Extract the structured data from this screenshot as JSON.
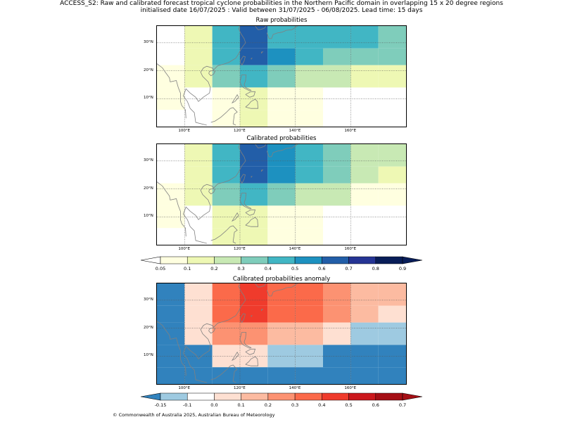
{
  "header": {
    "title_line1": "ACCESS_S2: Raw and calibrated forecast tropical cyclone probabilities in the Northern Pacific domain in overlapping 15 x 20 degree regions",
    "title_line2": "initialised date 16/07/2025 :  Valid between 31/07/2025 - 06/08/2025. Lead time: 15 days"
  },
  "panels": [
    {
      "title": "Raw probabilities"
    },
    {
      "title": "Calibrated probabilities"
    },
    {
      "title": "Calibrated probabilities anomaly"
    }
  ],
  "axes": {
    "lon_ticks": [
      "100°E",
      "120°E",
      "140°E",
      "160°E"
    ],
    "lat_ticks": [
      "30°N",
      "20°N",
      "10°N"
    ]
  },
  "colorbar_prob": {
    "labels": [
      "0.05",
      "0.1",
      "0.2",
      "0.3",
      "0.4",
      "0.5",
      "0.6",
      "0.7",
      "0.8",
      "0.9"
    ],
    "colors": [
      "#ffffe0",
      "#eef8b4",
      "#c8e9b4",
      "#7fcdbb",
      "#41b6c4",
      "#1d91c0",
      "#225ea8",
      "#253494",
      "#081d58"
    ]
  },
  "colorbar_anom": {
    "labels": [
      "-0.15",
      "-0.1",
      "0.0",
      "0.1",
      "0.2",
      "0.3",
      "0.4",
      "0.5",
      "0.6",
      "0.7"
    ],
    "colors": [
      "#9ecae1",
      "#ffffff",
      "#fee0d2",
      "#fcbba1",
      "#fc9272",
      "#fb6a4a",
      "#ef3b2c",
      "#cb181d",
      "#a50f15"
    ],
    "under_color": "#3182bd"
  },
  "chart_data": {
    "type": "heatmap",
    "grid": {
      "lon_min": 90,
      "lon_max": 180,
      "lat_min": 0,
      "lat_max": 36,
      "lon_step": 10,
      "lat_rows": [
        [
          28,
          36
        ],
        [
          22,
          28
        ],
        [
          14,
          22
        ],
        [
          6,
          14
        ],
        [
          0,
          6
        ]
      ]
    },
    "raw": [
      [
        null,
        0.15,
        0.45,
        0.65,
        0.45,
        0.45,
        0.45,
        0.45,
        0.35
      ],
      [
        null,
        0.15,
        0.45,
        0.65,
        0.55,
        0.45,
        0.35,
        0.35,
        0.35
      ],
      [
        0.07,
        0.15,
        0.35,
        0.45,
        0.35,
        0.25,
        0.25,
        0.15,
        0.15
      ],
      [
        0.07,
        null,
        0.07,
        0.15,
        0.07,
        0.07,
        null,
        null,
        null
      ],
      [
        null,
        null,
        0.07,
        0.15,
        0.07,
        0.07,
        null,
        null,
        null
      ]
    ],
    "calibrated": [
      [
        null,
        0.15,
        0.45,
        0.65,
        0.55,
        0.45,
        0.35,
        0.25,
        0.25
      ],
      [
        null,
        0.15,
        0.45,
        0.65,
        0.55,
        0.45,
        0.35,
        0.25,
        0.15
      ],
      [
        0.07,
        0.15,
        0.35,
        0.45,
        0.35,
        0.25,
        0.25,
        0.07,
        0.07
      ],
      [
        0.07,
        null,
        0.15,
        0.15,
        0.07,
        0.07,
        null,
        null,
        null
      ],
      [
        null,
        null,
        0.15,
        0.15,
        0.07,
        0.07,
        null,
        null,
        null
      ]
    ],
    "anomaly": [
      [
        -0.2,
        0.05,
        0.35,
        0.45,
        0.35,
        0.3,
        0.25,
        0.15,
        0.15
      ],
      [
        -0.2,
        0.05,
        0.35,
        0.45,
        0.35,
        0.3,
        0.25,
        0.15,
        0.05
      ],
      [
        -0.2,
        0.05,
        0.25,
        0.25,
        0.15,
        0.15,
        0.05,
        -0.12,
        -0.12
      ],
      [
        -0.2,
        -0.2,
        0.05,
        0.05,
        -0.12,
        -0.12,
        -0.2,
        -0.2,
        -0.2
      ],
      [
        -0.2,
        -0.2,
        -0.2,
        -0.2,
        -0.2,
        -0.2,
        -0.2,
        -0.2,
        -0.2
      ]
    ]
  },
  "footer": {
    "copyright": "© Commonwealth of Australia 2025, Australian Bureau of Meteorology"
  }
}
